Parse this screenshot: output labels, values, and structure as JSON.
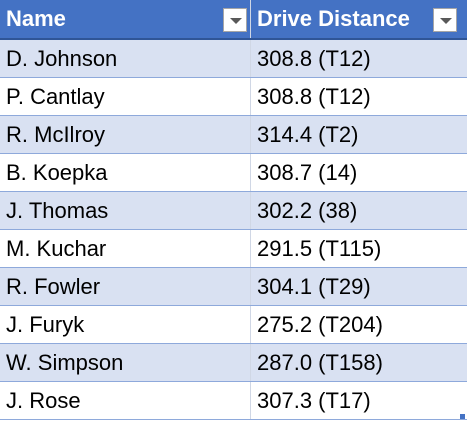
{
  "table": {
    "header": [
      "Name",
      "Drive Distance"
    ],
    "rows": [
      [
        "D. Johnson",
        "308.8 (T12)"
      ],
      [
        "P. Cantlay",
        "308.8 (T12)"
      ],
      [
        "R. McIlroy",
        "314.4 (T2)"
      ],
      [
        "B. Koepka",
        "308.7 (14)"
      ],
      [
        "J. Thomas",
        "302.2 (38)"
      ],
      [
        "M. Kuchar",
        "291.5 (T115)"
      ],
      [
        "R. Fowler",
        "304.1 (T29)"
      ],
      [
        "J. Furyk",
        "275.2 (T204)"
      ],
      [
        "W. Simpson",
        "287.0 (T158)"
      ],
      [
        "J. Rose",
        "307.3 (T17)"
      ]
    ]
  }
}
